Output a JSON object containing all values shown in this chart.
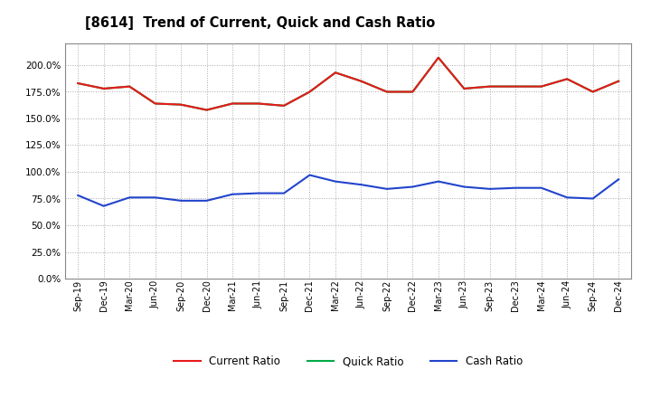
{
  "title": "[8614]  Trend of Current, Quick and Cash Ratio",
  "labels": [
    "Sep-19",
    "Dec-19",
    "Mar-20",
    "Jun-20",
    "Sep-20",
    "Dec-20",
    "Mar-21",
    "Jun-21",
    "Sep-21",
    "Dec-21",
    "Mar-22",
    "Jun-22",
    "Sep-22",
    "Dec-22",
    "Mar-23",
    "Jun-23",
    "Sep-23",
    "Dec-23",
    "Mar-24",
    "Jun-24",
    "Sep-24",
    "Dec-24"
  ],
  "current_ratio": [
    183,
    178,
    180,
    164,
    163,
    158,
    164,
    164,
    162,
    175,
    193,
    185,
    175,
    175,
    207,
    178,
    180,
    180,
    180,
    187,
    175,
    185
  ],
  "quick_ratio": [
    183,
    178,
    180,
    164,
    163,
    158,
    164,
    164,
    162,
    175,
    193,
    185,
    175,
    175,
    207,
    178,
    180,
    180,
    180,
    187,
    175,
    185
  ],
  "cash_ratio": [
    78,
    68,
    76,
    76,
    73,
    73,
    79,
    80,
    80,
    97,
    91,
    88,
    84,
    86,
    91,
    86,
    84,
    85,
    85,
    76,
    75,
    93
  ],
  "current_color": "#e8191a",
  "quick_color": "#00aa44",
  "cash_color": "#2244cc",
  "bg_color": "#ffffff",
  "plot_bg": "#ffffff",
  "grid_color": "#aaaaaa",
  "ylim": [
    0,
    220
  ],
  "yticks": [
    0,
    25,
    50,
    75,
    100,
    125,
    150,
    175,
    200
  ],
  "legend_labels": [
    "Current Ratio",
    "Quick Ratio",
    "Cash Ratio"
  ]
}
